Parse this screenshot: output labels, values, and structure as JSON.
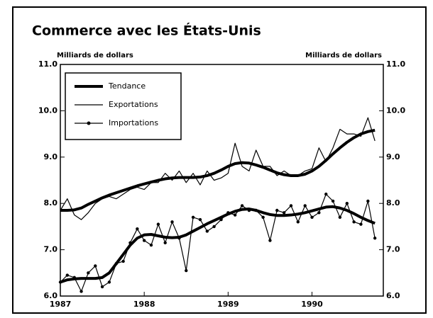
{
  "chart_data": {
    "type": "line",
    "title": "Commerce avec les États-Unis",
    "y_label": "Milliards de dollars",
    "y2_label": "Milliards de dollars",
    "trend_name": "Tendance",
    "x": [
      1987,
      1987.083,
      1987.167,
      1987.25,
      1987.333,
      1987.417,
      1987.5,
      1987.583,
      1987.667,
      1987.75,
      1987.833,
      1987.917,
      1988,
      1988.083,
      1988.167,
      1988.25,
      1988.333,
      1988.417,
      1988.5,
      1988.583,
      1988.667,
      1988.75,
      1988.833,
      1988.917,
      1989,
      1989.083,
      1989.167,
      1989.25,
      1989.333,
      1989.417,
      1989.5,
      1989.583,
      1989.667,
      1989.75,
      1989.833,
      1989.917,
      1990,
      1990.083,
      1990.167,
      1990.25,
      1990.333,
      1990.417,
      1990.5,
      1990.583,
      1990.667,
      1990.75
    ],
    "series": [
      {
        "name": "Exportations",
        "color": "#000000",
        "values": [
          7.85,
          8.1,
          7.75,
          7.65,
          7.8,
          8.0,
          8.1,
          8.15,
          8.1,
          8.2,
          8.3,
          8.35,
          8.3,
          8.45,
          8.45,
          8.65,
          8.5,
          8.7,
          8.45,
          8.65,
          8.4,
          8.7,
          8.5,
          8.55,
          8.65,
          9.3,
          8.8,
          8.7,
          9.15,
          8.8,
          8.8,
          8.6,
          8.7,
          8.6,
          8.6,
          8.7,
          8.75,
          9.2,
          8.9,
          9.2,
          9.6,
          9.5,
          9.5,
          9.45,
          9.85,
          9.35
        ],
        "trend": [
          7.85,
          7.85,
          7.86,
          7.9,
          7.98,
          8.05,
          8.12,
          8.18,
          8.23,
          8.28,
          8.33,
          8.38,
          8.42,
          8.46,
          8.5,
          8.53,
          8.55,
          8.56,
          8.56,
          8.56,
          8.57,
          8.6,
          8.65,
          8.72,
          8.8,
          8.86,
          8.88,
          8.87,
          8.83,
          8.78,
          8.72,
          8.66,
          8.62,
          8.6,
          8.6,
          8.63,
          8.7,
          8.8,
          8.93,
          9.07,
          9.2,
          9.32,
          9.42,
          9.5,
          9.55,
          9.58
        ]
      },
      {
        "name": "Importations",
        "color": "#000000",
        "marker": "circle",
        "values": [
          6.3,
          6.45,
          6.4,
          6.1,
          6.5,
          6.65,
          6.2,
          6.3,
          6.7,
          6.75,
          7.15,
          7.45,
          7.2,
          7.1,
          7.55,
          7.15,
          7.6,
          7.25,
          6.55,
          7.7,
          7.65,
          7.4,
          7.5,
          7.65,
          7.8,
          7.75,
          7.95,
          7.85,
          7.85,
          7.7,
          7.2,
          7.85,
          7.8,
          7.95,
          7.6,
          7.95,
          7.7,
          7.8,
          8.2,
          8.05,
          7.7,
          8.0,
          7.6,
          7.55,
          8.05,
          7.25
        ],
        "trend": [
          6.3,
          6.35,
          6.37,
          6.38,
          6.38,
          6.38,
          6.4,
          6.5,
          6.7,
          6.9,
          7.1,
          7.25,
          7.32,
          7.33,
          7.3,
          7.27,
          7.26,
          7.27,
          7.32,
          7.4,
          7.48,
          7.56,
          7.63,
          7.7,
          7.77,
          7.83,
          7.87,
          7.88,
          7.85,
          7.8,
          7.76,
          7.74,
          7.74,
          7.75,
          7.77,
          7.8,
          7.84,
          7.88,
          7.92,
          7.93,
          7.9,
          7.85,
          7.78,
          7.7,
          7.63,
          7.57
        ]
      }
    ],
    "xlim": [
      1987,
      1990.85
    ],
    "xticks": [
      1987,
      1988,
      1989,
      1990
    ],
    "ylim": [
      6,
      11
    ],
    "yticks": [
      {
        "value": 6,
        "label": "6.0"
      },
      {
        "value": 7,
        "label": "7.0"
      },
      {
        "value": 8,
        "label": "8.0"
      },
      {
        "value": 9,
        "label": "9.0"
      },
      {
        "value": 10,
        "label": "10.0"
      },
      {
        "value": 11,
        "label": "11.0"
      }
    ],
    "y2lim": [
      6,
      11
    ],
    "y2ticks": [
      {
        "value": 6,
        "label": "6.0"
      },
      {
        "value": 7,
        "label": "7.0"
      },
      {
        "value": 8,
        "label": "8.0"
      },
      {
        "value": 9,
        "label": "9.0"
      },
      {
        "value": 10,
        "label": "10.0"
      },
      {
        "value": 11,
        "label": "11.0"
      }
    ],
    "legend": "upper-left"
  }
}
